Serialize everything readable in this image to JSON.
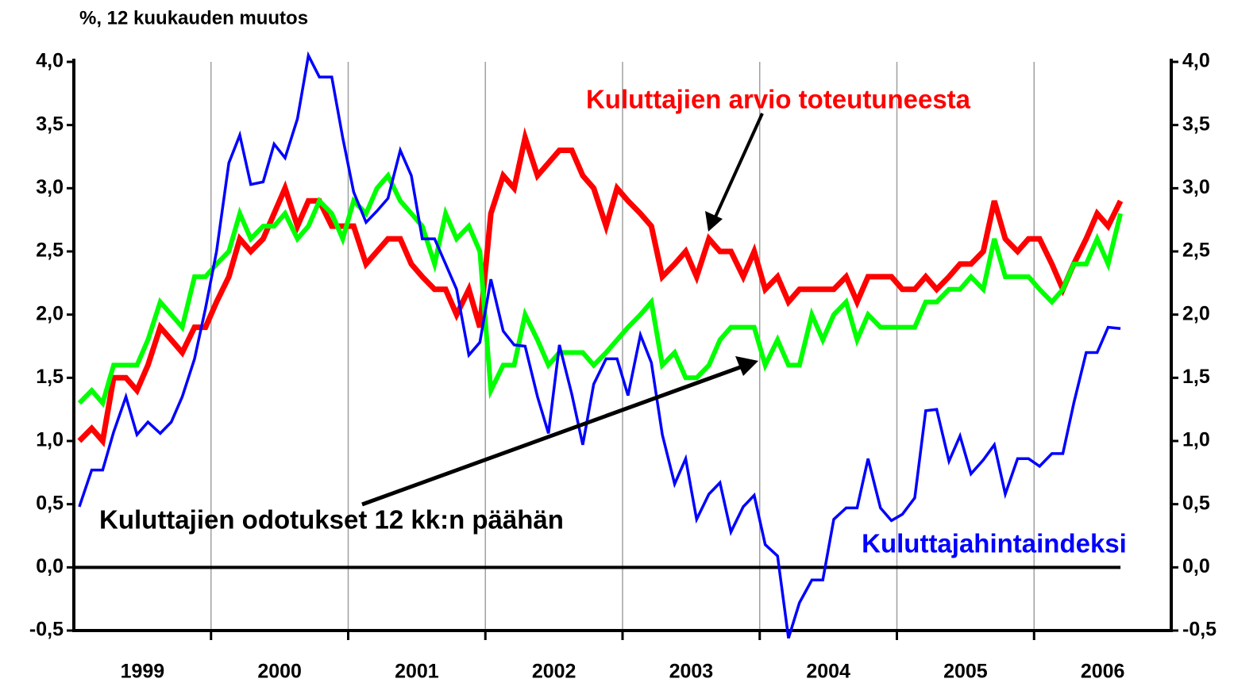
{
  "chart_data": {
    "type": "line",
    "title": "%, 12 kuukauden muutos",
    "x": [
      1999.04,
      1999.13,
      1999.21,
      1999.29,
      1999.38,
      1999.46,
      1999.54,
      1999.63,
      1999.71,
      1999.79,
      1999.88,
      1999.96,
      2000.04,
      2000.13,
      2000.21,
      2000.29,
      2000.38,
      2000.46,
      2000.54,
      2000.63,
      2000.71,
      2000.79,
      2000.88,
      2000.96,
      2001.04,
      2001.13,
      2001.21,
      2001.29,
      2001.38,
      2001.46,
      2001.54,
      2001.63,
      2001.71,
      2001.79,
      2001.88,
      2001.96,
      2002.04,
      2002.13,
      2002.21,
      2002.29,
      2002.38,
      2002.46,
      2002.54,
      2002.63,
      2002.71,
      2002.79,
      2002.88,
      2002.96,
      2003.04,
      2003.13,
      2003.21,
      2003.29,
      2003.38,
      2003.46,
      2003.54,
      2003.63,
      2003.71,
      2003.79,
      2003.88,
      2003.96,
      2004.04,
      2004.13,
      2004.21,
      2004.29,
      2004.38,
      2004.46,
      2004.54,
      2004.63,
      2004.71,
      2004.79,
      2004.88,
      2004.96,
      2005.04,
      2005.13,
      2005.21,
      2005.29,
      2005.38,
      2005.46,
      2005.54,
      2005.63,
      2005.71,
      2005.79,
      2005.88,
      2005.96,
      2006.04,
      2006.13,
      2006.21,
      2006.29,
      2006.38,
      2006.46,
      2006.54,
      2006.63
    ],
    "series": [
      {
        "name": "Kuluttajien arvio toteutuneesta",
        "color": "#ff0000",
        "width": 7,
        "values": [
          1.0,
          1.1,
          1.0,
          1.5,
          1.5,
          1.4,
          1.6,
          1.9,
          1.8,
          1.7,
          1.9,
          1.9,
          2.1,
          2.3,
          2.6,
          2.5,
          2.6,
          2.8,
          3.0,
          2.7,
          2.9,
          2.9,
          2.7,
          2.7,
          2.7,
          2.4,
          2.5,
          2.6,
          2.6,
          2.4,
          2.3,
          2.2,
          2.2,
          2.0,
          2.2,
          1.9,
          2.8,
          3.1,
          3.0,
          3.4,
          3.1,
          3.2,
          3.3,
          3.3,
          3.1,
          3.0,
          2.7,
          3.0,
          2.9,
          2.8,
          2.7,
          2.3,
          2.4,
          2.5,
          2.3,
          2.6,
          2.5,
          2.5,
          2.3,
          2.5,
          2.2,
          2.3,
          2.1,
          2.2,
          2.2,
          2.2,
          2.2,
          2.3,
          2.1,
          2.3,
          2.3,
          2.3,
          2.2,
          2.2,
          2.3,
          2.2,
          2.3,
          2.4,
          2.4,
          2.5,
          2.9,
          2.6,
          2.5,
          2.6,
          2.6,
          2.4,
          2.2,
          2.4,
          2.6,
          2.8,
          2.7,
          2.9
        ]
      },
      {
        "name": "Kuluttajien odotukset 12 kk:n päähän",
        "color": "#00ff00",
        "width": 6,
        "values": [
          1.3,
          1.4,
          1.3,
          1.6,
          1.6,
          1.6,
          1.8,
          2.1,
          2.0,
          1.9,
          2.3,
          2.3,
          2.4,
          2.5,
          2.8,
          2.6,
          2.7,
          2.7,
          2.8,
          2.6,
          2.7,
          2.9,
          2.8,
          2.6,
          2.9,
          2.8,
          3.0,
          3.1,
          2.9,
          2.8,
          2.7,
          2.4,
          2.8,
          2.6,
          2.7,
          2.5,
          1.4,
          1.6,
          1.6,
          2.0,
          1.8,
          1.6,
          1.7,
          1.7,
          1.7,
          1.6,
          1.7,
          1.8,
          1.9,
          2.0,
          2.1,
          1.6,
          1.7,
          1.5,
          1.5,
          1.6,
          1.8,
          1.9,
          1.9,
          1.9,
          1.6,
          1.8,
          1.6,
          1.6,
          2.0,
          1.8,
          2.0,
          2.1,
          1.8,
          2.0,
          1.9,
          1.9,
          1.9,
          1.9,
          2.1,
          2.1,
          2.2,
          2.2,
          2.3,
          2.2,
          2.6,
          2.3,
          2.3,
          2.3,
          2.2,
          2.1,
          2.2,
          2.4,
          2.4,
          2.6,
          2.4,
          2.8
        ]
      },
      {
        "name": "Kuluttajahintaindeksi",
        "color": "#0000ff",
        "width": 3.5,
        "values": [
          0.48,
          0.77,
          0.77,
          1.07,
          1.35,
          1.05,
          1.15,
          1.06,
          1.15,
          1.35,
          1.65,
          2.05,
          2.5,
          3.2,
          3.42,
          3.03,
          3.05,
          3.35,
          3.24,
          3.55,
          4.05,
          3.88,
          3.88,
          3.4,
          2.97,
          2.73,
          2.82,
          2.92,
          3.3,
          3.1,
          2.6,
          2.6,
          2.4,
          2.2,
          1.68,
          1.78,
          2.28,
          1.87,
          1.76,
          1.75,
          1.35,
          1.06,
          1.76,
          1.37,
          0.97,
          1.45,
          1.65,
          1.65,
          1.36,
          1.84,
          1.62,
          1.05,
          0.66,
          0.86,
          0.38,
          0.58,
          0.67,
          0.28,
          0.48,
          0.57,
          0.18,
          0.09,
          -0.56,
          -0.28,
          -0.1,
          -0.1,
          0.38,
          0.47,
          0.47,
          0.86,
          0.47,
          0.37,
          0.42,
          0.55,
          1.24,
          1.25,
          0.84,
          1.04,
          0.74,
          0.85,
          0.97,
          0.58,
          0.86,
          0.86,
          0.8,
          0.9,
          0.9,
          1.3,
          1.7,
          1.7,
          1.9,
          1.89
        ]
      }
    ],
    "xlim": [
      1999,
      2007
    ],
    "xticks": [
      {
        "value": 1999.5,
        "label": "1999"
      },
      {
        "value": 2000.5,
        "label": "2000"
      },
      {
        "value": 2001.5,
        "label": "2001"
      },
      {
        "value": 2002.5,
        "label": "2002"
      },
      {
        "value": 2003.5,
        "label": "2003"
      },
      {
        "value": 2004.5,
        "label": "2004"
      },
      {
        "value": 2005.5,
        "label": "2005"
      },
      {
        "value": 2006.5,
        "label": "2006"
      }
    ],
    "xgrid": [
      2000,
      2001,
      2002,
      2003,
      2004,
      2005,
      2006
    ],
    "ylim": [
      -0.5,
      4.0
    ],
    "yticks": [
      {
        "value": -0.5,
        "label": "-0,5"
      },
      {
        "value": 0,
        "label": "0,0"
      },
      {
        "value": 0.5,
        "label": "0,5"
      },
      {
        "value": 1.0,
        "label": "1,0"
      },
      {
        "value": 1.5,
        "label": "1,5"
      },
      {
        "value": 2.0,
        "label": "2,0"
      },
      {
        "value": 2.5,
        "label": "2,5"
      },
      {
        "value": 3.0,
        "label": "3,0"
      },
      {
        "value": 3.5,
        "label": "3,5"
      },
      {
        "value": 4.0,
        "label": "4,0"
      }
    ],
    "y2lim": [
      -0.5,
      4.0
    ],
    "y2ticks": [
      {
        "value": -0.5,
        "label": "-0,5"
      },
      {
        "value": 0,
        "label": "0,0"
      },
      {
        "value": 0.5,
        "label": "0,5"
      },
      {
        "value": 1.0,
        "label": "1,0"
      },
      {
        "value": 1.5,
        "label": "1,5"
      },
      {
        "value": 2.0,
        "label": "2,0"
      },
      {
        "value": 2.5,
        "label": "2,5"
      },
      {
        "value": 3.0,
        "label": "3,0"
      },
      {
        "value": 3.5,
        "label": "3,5"
      },
      {
        "value": 4.0,
        "label": "4,0"
      }
    ],
    "zero_line": 0
  }
}
